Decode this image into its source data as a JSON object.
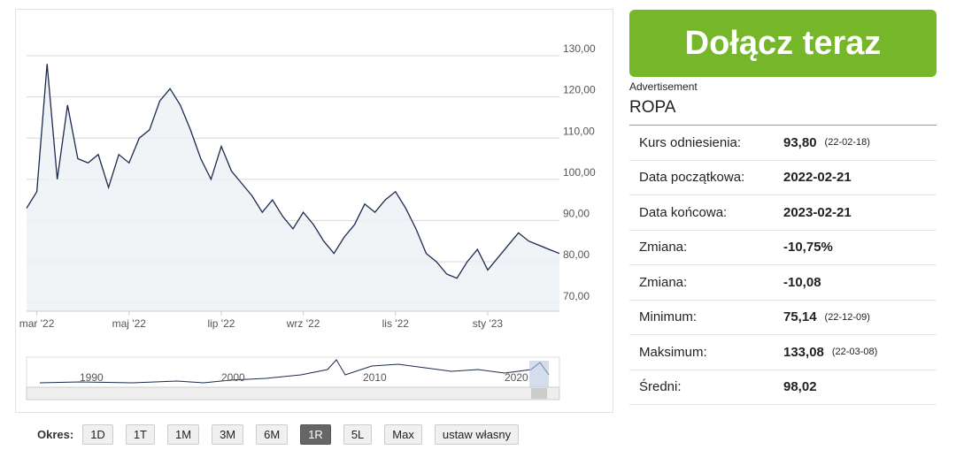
{
  "chart_data": {
    "type": "line",
    "categories": [
      null,
      "mar '22",
      null,
      null,
      null,
      null,
      null,
      null,
      null,
      null,
      "maj '22",
      null,
      null,
      null,
      null,
      null,
      null,
      null,
      null,
      "lip '22",
      null,
      null,
      null,
      null,
      null,
      null,
      null,
      "wrz '22",
      null,
      null,
      null,
      null,
      null,
      null,
      null,
      null,
      "lis '22",
      null,
      null,
      null,
      null,
      null,
      null,
      null,
      null,
      "sty '23",
      null,
      null,
      null,
      null,
      null,
      null,
      null
    ],
    "series": [
      {
        "color": "#1b2a4e",
        "values": [
          93,
          97,
          128,
          100,
          118,
          105,
          104,
          106,
          98,
          106,
          104,
          110,
          112,
          119,
          122,
          118,
          112,
          105,
          100,
          108,
          102,
          99,
          96,
          92,
          95,
          91,
          88,
          92,
          89,
          85,
          82,
          86,
          89,
          94,
          92,
          95,
          97,
          93,
          88,
          82,
          80,
          77,
          76,
          80,
          83,
          78,
          81,
          84,
          87,
          85,
          84,
          83,
          82
        ]
      }
    ],
    "ylim": [
      68,
      139
    ],
    "yticks": [
      {
        "value": 70,
        "label": "70,00"
      },
      {
        "value": 80,
        "label": "80,00"
      },
      {
        "value": 90,
        "label": "90,00"
      },
      {
        "value": 100,
        "label": "100,00"
      },
      {
        "value": 110,
        "label": "110,00"
      },
      {
        "value": 120,
        "label": "120,00"
      },
      {
        "value": 130,
        "label": "130,00"
      }
    ],
    "grid": true,
    "navigator_labels": [
      "1990",
      "2000",
      "2010",
      "2020"
    ]
  },
  "join_button": "Dołącz teraz",
  "ad_alt": "Advertisement",
  "instrument": "ROPA",
  "table": {
    "rows": [
      {
        "label": "Kurs odniesienia:",
        "value": "93,80",
        "date": "(22-02-18)"
      },
      {
        "label": "Data początkowa:",
        "value": "2022-02-21"
      },
      {
        "label": "Data końcowa:",
        "value": "2023-02-21"
      },
      {
        "label": "Zmiana:",
        "value": "-10,75%"
      },
      {
        "label": "Zmiana:",
        "value": "-10,08"
      },
      {
        "label": "Minimum:",
        "value": "75,14",
        "date": "(22-12-09)"
      },
      {
        "label": "Maksimum:",
        "value": "133,08",
        "date": "(22-03-08)"
      },
      {
        "label": "Średni:",
        "value": "98,02"
      }
    ]
  },
  "period": {
    "label": "Okres:",
    "buttons": [
      "1D",
      "1T",
      "1M",
      "3M",
      "6M",
      "1R",
      "5L",
      "Max",
      "ustaw własny"
    ],
    "active": 5
  }
}
